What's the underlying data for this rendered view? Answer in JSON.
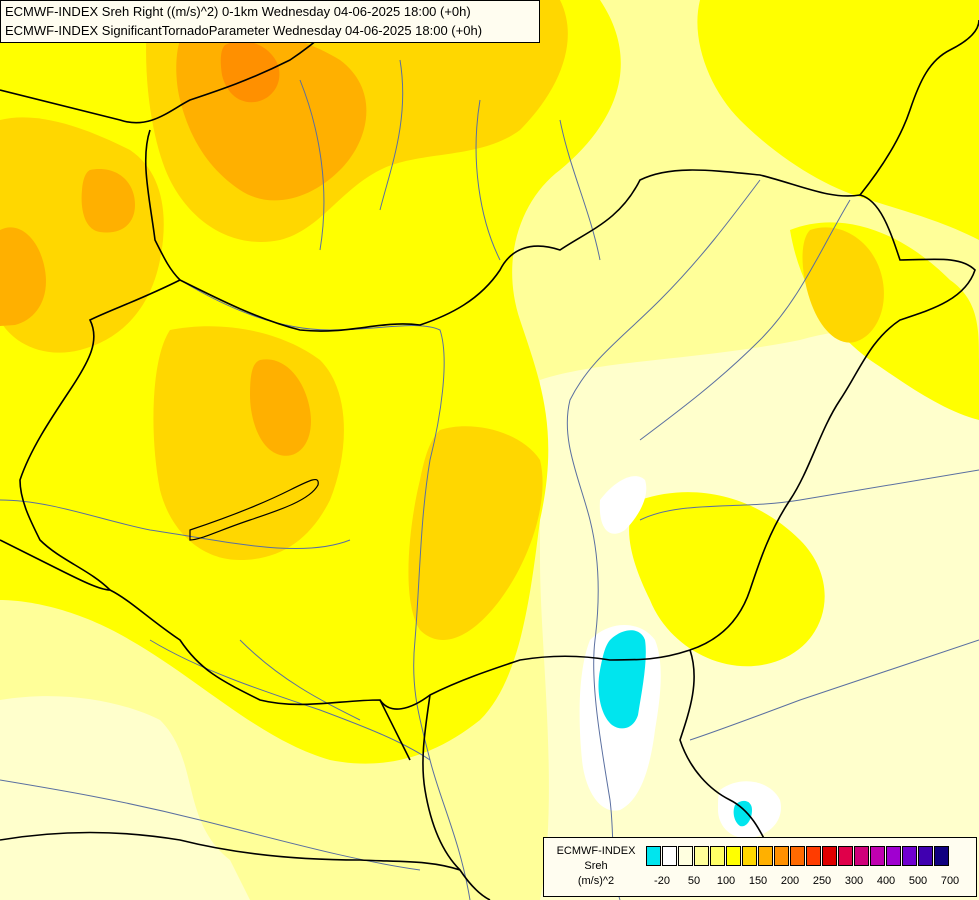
{
  "title_lines": [
    "ECMWF-INDEX Sreh Right ((m/s)^2) 0-1km Wednesday 04-06-2025 18:00 (+0h)",
    "ECMWF-INDEX SignificantTornadoParameter Wednesday 04-06-2025 18:00 (+0h)"
  ],
  "legend": {
    "title_lines": [
      "ECMWF-INDEX",
      "Sreh",
      "(m/s)^2"
    ],
    "colors": [
      "#00e5ee",
      "#ffffff",
      "#ffffe0",
      "#ffff99",
      "#ffff66",
      "#ffff00",
      "#ffd700",
      "#ffb000",
      "#ff9000",
      "#ff6a00",
      "#ff3c00",
      "#e00000",
      "#e0004a",
      "#d0007a",
      "#c000b0",
      "#a000d0",
      "#7000d0",
      "#4000b0",
      "#100080"
    ],
    "labels": [
      "-20",
      "50",
      "100",
      "150",
      "200",
      "250",
      "300",
      "400",
      "500",
      "700"
    ]
  },
  "colors": {
    "field_light": "#ffff99",
    "field_mid": "#ffff00",
    "field_gold": "#ffd700",
    "field_orange": "#ffb000",
    "field_deep_orange": "#ff9000",
    "field_cyan": "#00e5ee",
    "border": "#000000",
    "river": "#5a6fa0"
  }
}
